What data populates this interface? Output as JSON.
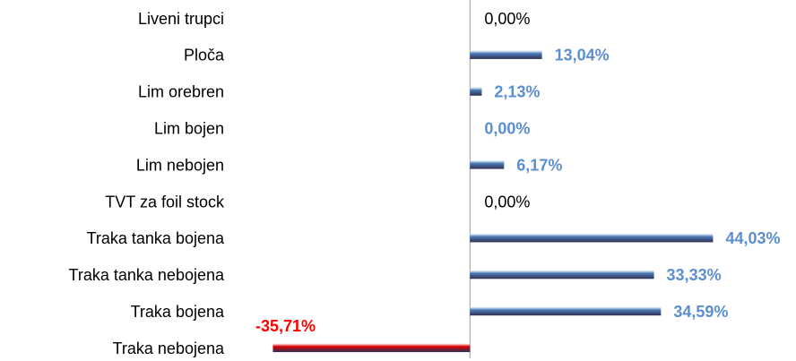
{
  "chart_data": {
    "type": "bar",
    "orientation": "horizontal",
    "categories": [
      "Liveni trupci",
      "Ploča",
      "Lim orebren",
      "Lim bojen",
      "Lim nebojen",
      "TVT za foil stock",
      "Traka tanka bojena",
      "Traka tanka nebojena",
      "Traka bojena",
      "Traka nebojena"
    ],
    "values": [
      0,
      13.04,
      2.13,
      0,
      6.17,
      0,
      44.03,
      33.33,
      34.59,
      -35.71
    ],
    "value_labels": [
      "0,00%",
      "13,04%",
      "2,13%",
      "0,00%",
      "6,17%",
      "0,00%",
      "44,03%",
      "33,33%",
      "34,59%",
      "-35,71%"
    ],
    "colors": [
      "#4f81bd",
      "#4f81bd",
      "#4f81bd",
      "#4f81bd",
      "#4f81bd",
      "#4f81bd",
      "#4f81bd",
      "#4f81bd",
      "#4f81bd",
      "#e00000"
    ],
    "label_colors": [
      "#000000",
      "#5b8fd0",
      "#5b8fd0",
      "#5b8fd0",
      "#5b8fd0",
      "#000000",
      "#5b8fd0",
      "#5b8fd0",
      "#5b8fd0",
      "#ff0000"
    ],
    "xlim": [
      -40,
      55
    ]
  }
}
